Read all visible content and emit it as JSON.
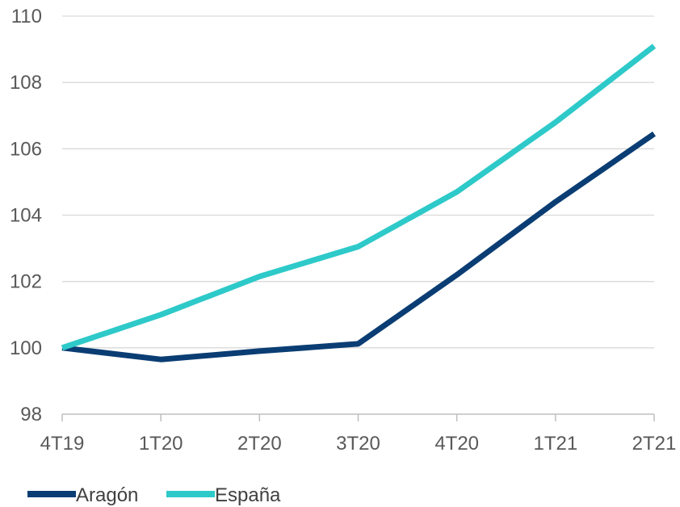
{
  "chart_data": {
    "type": "line",
    "categories": [
      "4T19",
      "1T20",
      "2T20",
      "3T20",
      "4T20",
      "1T21",
      "2T21"
    ],
    "series": [
      {
        "name": "Aragón",
        "color": "#0a3d73",
        "values": [
          100.0,
          99.65,
          99.9,
          100.12,
          102.2,
          104.4,
          106.45
        ]
      },
      {
        "name": "España",
        "color": "#2ec9c9",
        "values": [
          100.0,
          101.0,
          102.15,
          103.05,
          104.7,
          106.8,
          109.1
        ]
      }
    ],
    "ylim": [
      98,
      110
    ],
    "yticks": [
      98,
      100,
      102,
      104,
      106,
      108,
      110
    ],
    "grid": true,
    "legend": "bottom-left",
    "title": "",
    "xlabel": "",
    "ylabel": ""
  }
}
